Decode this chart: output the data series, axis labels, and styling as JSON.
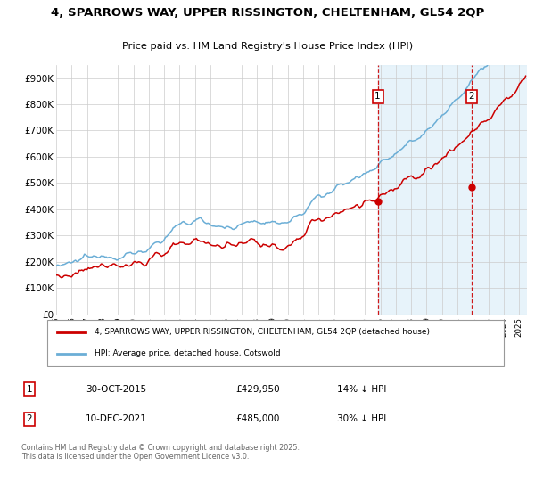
{
  "title_line1": "4, SPARROWS WAY, UPPER RISSINGTON, CHELTENHAM, GL54 2QP",
  "title_line2": "Price paid vs. HM Land Registry's House Price Index (HPI)",
  "ylim": [
    0,
    950000
  ],
  "yticks": [
    0,
    100000,
    200000,
    300000,
    400000,
    500000,
    600000,
    700000,
    800000,
    900000
  ],
  "ytick_labels": [
    "£0",
    "£100K",
    "£200K",
    "£300K",
    "£400K",
    "£500K",
    "£600K",
    "£700K",
    "£800K",
    "£900K"
  ],
  "hpi_color": "#6baed6",
  "price_color": "#cc0000",
  "purchase1_date": "30-OCT-2015",
  "purchase1_price": 429950,
  "purchase1_label": "1",
  "purchase1_hpi_diff": "14% ↓ HPI",
  "purchase2_date": "10-DEC-2021",
  "purchase2_price": 485000,
  "purchase2_label": "2",
  "purchase2_hpi_diff": "30% ↓ HPI",
  "legend_line1": "4, SPARROWS WAY, UPPER RISSINGTON, CHELTENHAM, GL54 2QP (detached house)",
  "legend_line2": "HPI: Average price, detached house, Cotswold",
  "footer": "Contains HM Land Registry data © Crown copyright and database right 2025.\nThis data is licensed under the Open Government Licence v3.0.",
  "background_color": "#ffffff",
  "plot_bg_color": "#ffffff",
  "grid_color": "#cccccc",
  "shade_color": "#ddeef8",
  "p1_year": 2015.83,
  "p2_year": 2021.92
}
